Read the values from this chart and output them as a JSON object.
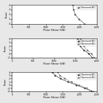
{
  "fig_bgcolor": "#e8e8e8",
  "subplot_bgcolor": "#ffffff",
  "label_fontsize": 2.8,
  "tick_fontsize": 2.2,
  "legend_fontsize": 2.0,
  "linewidth": 0.5,
  "subplots": [
    {
      "xlabel": "Floor Shear (kN)",
      "ylabel": "Floor",
      "xlim": [
        0,
        2500
      ],
      "ylim": [
        0,
        4
      ],
      "yticks": [
        0,
        1,
        2,
        3,
        4
      ],
      "xticks": [
        0,
        500,
        1000,
        1500,
        2000,
        2500
      ],
      "lines": [
        {
          "x": [
            1800,
            1820,
            1870,
            1980,
            2150
          ],
          "y": [
            4,
            3,
            2,
            1,
            0
          ],
          "color": "#555555",
          "ls": "-",
          "marker": "o",
          "label": "1 Basement(B1)"
        }
      ]
    },
    {
      "xlabel": "Floor Shear (kN)",
      "ylabel": "Floor",
      "xlim": [
        0,
        2000
      ],
      "ylim": [
        -1,
        4
      ],
      "yticks": [
        -1,
        0,
        1,
        2,
        3,
        4
      ],
      "xticks": [
        0,
        500,
        1000,
        1500,
        2000
      ],
      "lines": [
        {
          "x": [
            1550,
            1570,
            1610,
            1700,
            1820,
            1900
          ],
          "y": [
            4,
            3,
            2,
            1,
            0,
            -1
          ],
          "color": "#333333",
          "ls": "-",
          "marker": "o",
          "label": "1 Basement(B1)"
        },
        {
          "x": [
            1620,
            1650,
            1700,
            1780,
            1880,
            1950
          ],
          "y": [
            4,
            3,
            2,
            1,
            0,
            -1
          ],
          "color": "#777777",
          "ls": "--",
          "marker": "s",
          "label": "2 Basement(B2)"
        }
      ]
    },
    {
      "xlabel": "Floor Shear (kN)",
      "ylabel": "Floor",
      "xlim": [
        0,
        2500
      ],
      "ylim": [
        -2,
        4
      ],
      "yticks": [
        -2,
        -1,
        0,
        1,
        2,
        3,
        4
      ],
      "xticks": [
        0,
        500,
        1000,
        1500,
        2000,
        2500
      ],
      "lines": [
        {
          "x": [
            1200,
            1280,
            1430,
            1650,
            1900,
            2150,
            2350
          ],
          "y": [
            4,
            3,
            2,
            1,
            0,
            -1,
            -2
          ],
          "color": "#333333",
          "ls": "-",
          "marker": "o",
          "label": "1 Basement(B1)"
        },
        {
          "x": [
            1350,
            1420,
            1560,
            1750,
            1980,
            2200,
            2400
          ],
          "y": [
            4,
            3,
            2,
            1,
            0,
            -1,
            -2
          ],
          "color": "#777777",
          "ls": "--",
          "marker": "s",
          "label": "2 Basement(B2)"
        }
      ]
    }
  ]
}
